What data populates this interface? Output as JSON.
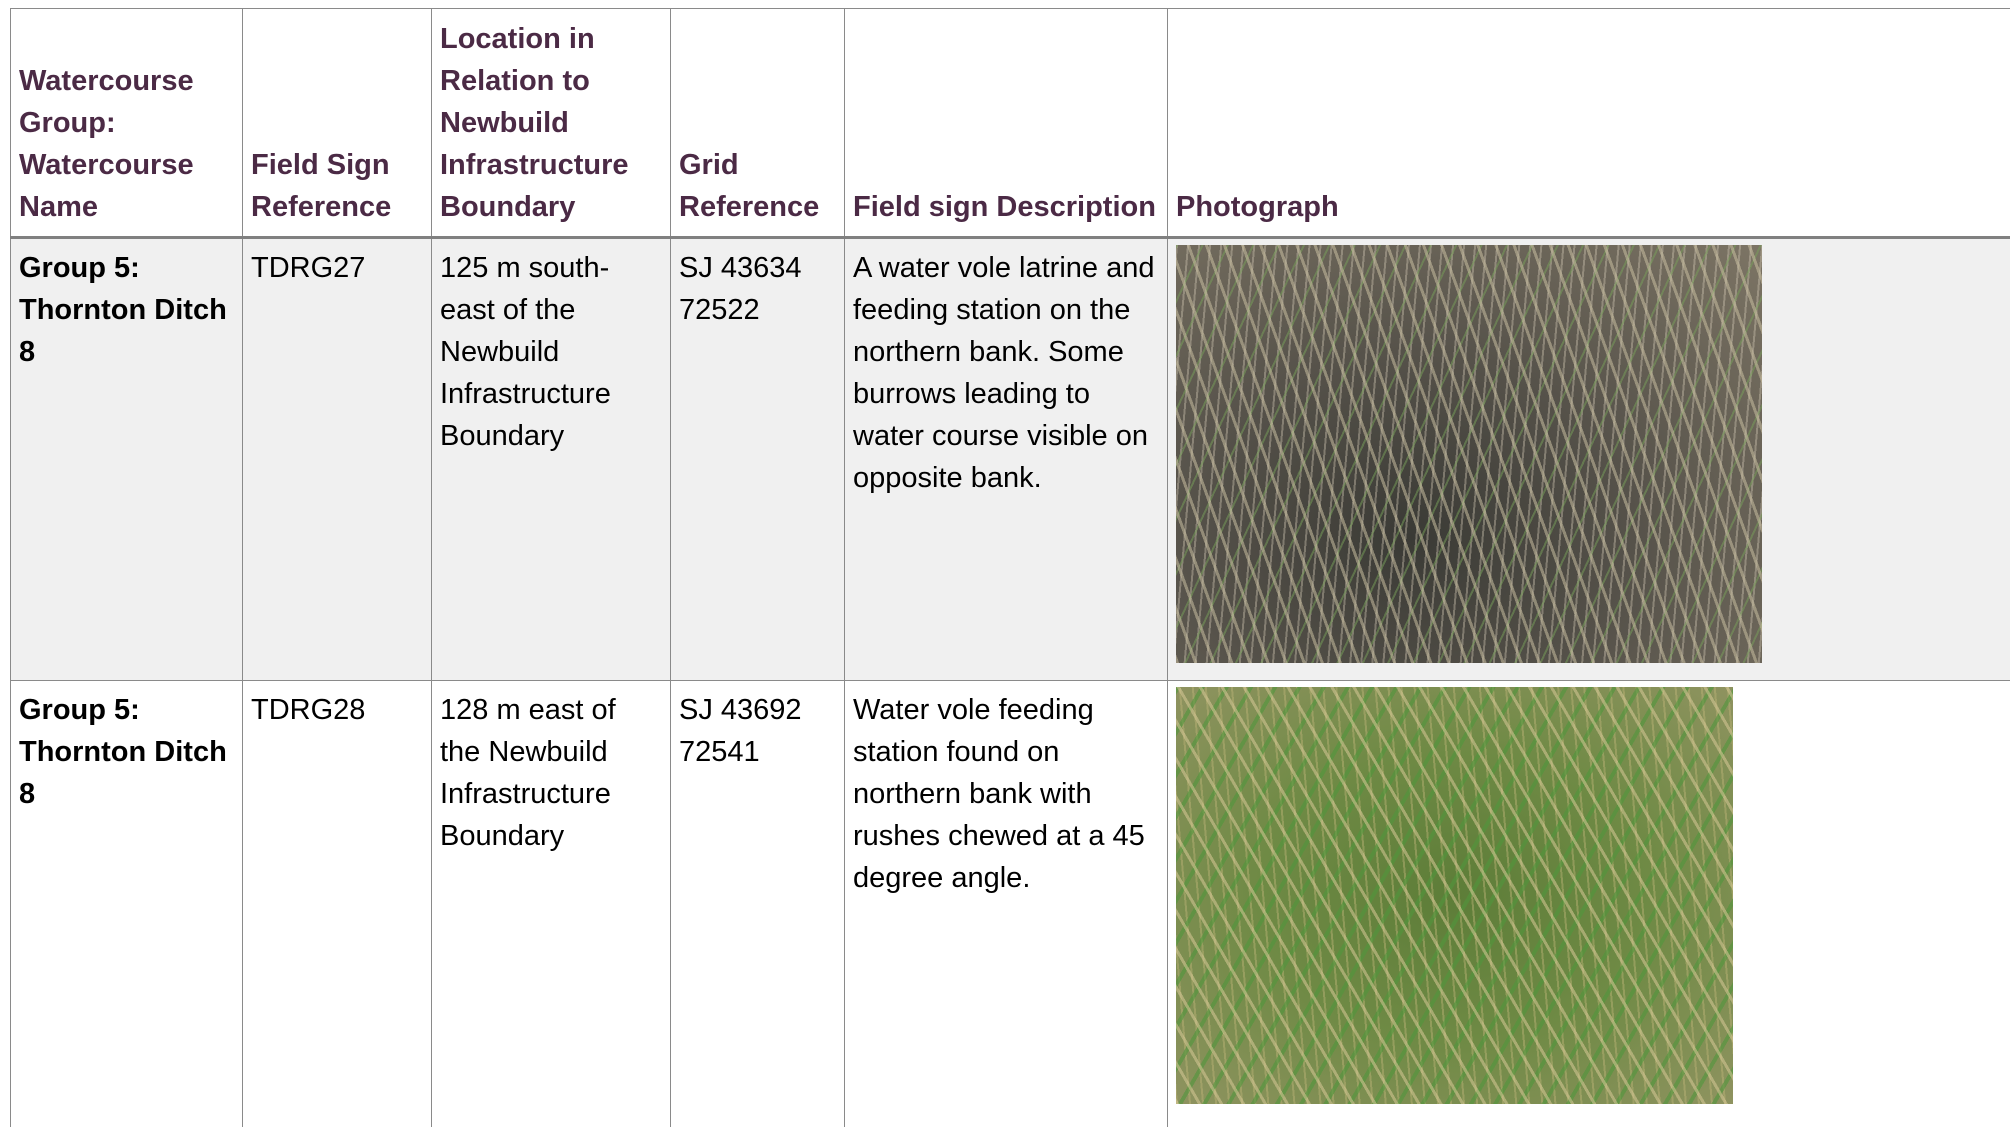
{
  "table": {
    "header": [
      "Watercourse Group: Watercourse Name",
      "Field Sign Reference",
      "Location in Relation to Newbuild Infrastructure Boundary",
      "Grid Reference",
      "Field sign Description",
      "Photograph"
    ],
    "rows": [
      [
        "Group 5: Thornton Ditch 8",
        "TDRG27",
        "125 m south-east of the Newbuild Infrastructure Boundary",
        "SJ 43634 72522",
        "A water vole latrine and feeding station on the northern bank. Some burrows leading to water course visible on opposite bank."
      ],
      [
        "Group 5: Thornton Ditch 8",
        "TDRG28",
        "128 m east of the Newbuild Infrastructure Boundary",
        "SJ 43692 72541",
        "Water vole feeding station found on northern bank with rushes chewed at a 45 degree angle."
      ]
    ]
  }
}
